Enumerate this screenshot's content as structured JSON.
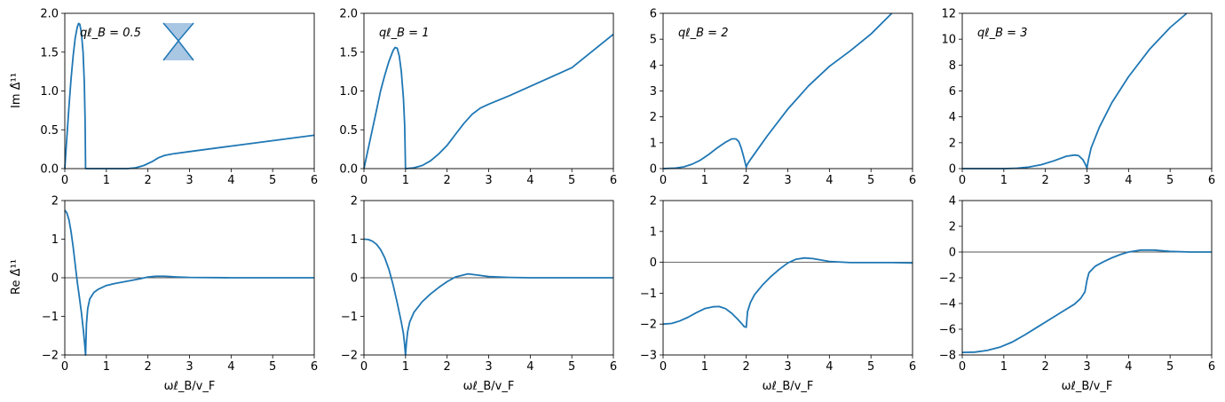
{
  "figure": {
    "row_labels": [
      "Im Δ̂¹¹",
      "Re Δ̂¹¹"
    ],
    "xlabel": "ωℓ_B/v_F"
  },
  "chart_data": [
    {
      "type": "line",
      "panel_label": "qℓ_B = 0.5",
      "xlim": [
        0,
        6
      ],
      "ylim": [
        0,
        2
      ],
      "xticks": [
        0,
        1,
        2,
        3,
        4,
        5,
        6
      ],
      "yticks": [
        0.0,
        0.5,
        1.0,
        1.5,
        2.0
      ],
      "ytick_labels": [
        "0.0",
        "0.5",
        "1.0",
        "1.5",
        "2.0"
      ],
      "zero_line": false,
      "inset": "cone-icon",
      "series": [
        {
          "color": "#1f77b4",
          "x": [
            0,
            0.05,
            0.1,
            0.15,
            0.2,
            0.25,
            0.3,
            0.33,
            0.36,
            0.4,
            0.44,
            0.47,
            0.49,
            0.5,
            0.5,
            0.8,
            1.0,
            1.5,
            1.7,
            1.9,
            2.1,
            2.25,
            2.4,
            2.6,
            3,
            4,
            5,
            6
          ],
          "y": [
            0,
            0.4,
            0.8,
            1.15,
            1.45,
            1.68,
            1.82,
            1.87,
            1.86,
            1.75,
            1.5,
            1.1,
            0.6,
            0.0,
            0,
            0,
            0,
            0,
            0.01,
            0.04,
            0.09,
            0.14,
            0.17,
            0.19,
            0.22,
            0.29,
            0.36,
            0.43
          ]
        }
      ]
    },
    {
      "type": "line",
      "panel_label": "qℓ_B = 1",
      "xlim": [
        0,
        6
      ],
      "ylim": [
        0,
        2
      ],
      "xticks": [
        0,
        1,
        2,
        3,
        4,
        5,
        6
      ],
      "yticks": [
        0.0,
        0.5,
        1.0,
        1.5,
        2.0
      ],
      "ytick_labels": [
        "0.0",
        "0.5",
        "1.0",
        "1.5",
        "2.0"
      ],
      "zero_line": false,
      "series": [
        {
          "color": "#1f77b4",
          "x": [
            0,
            0.1,
            0.2,
            0.3,
            0.4,
            0.5,
            0.6,
            0.7,
            0.75,
            0.8,
            0.85,
            0.9,
            0.95,
            0.98,
            1.0,
            1.0,
            1.2,
            1.4,
            1.6,
            1.8,
            2.0,
            2.2,
            2.4,
            2.6,
            2.8,
            3.0,
            3.5,
            4,
            5,
            6
          ],
          "y": [
            0,
            0.25,
            0.5,
            0.75,
            1.0,
            1.2,
            1.38,
            1.52,
            1.56,
            1.55,
            1.45,
            1.25,
            0.9,
            0.55,
            0.0,
            0,
            0.01,
            0.04,
            0.1,
            0.19,
            0.3,
            0.44,
            0.58,
            0.7,
            0.78,
            0.83,
            0.94,
            1.06,
            1.3,
            1.73
          ]
        }
      ]
    },
    {
      "type": "line",
      "panel_label": "qℓ_B = 2",
      "xlim": [
        0,
        6
      ],
      "ylim": [
        0,
        6
      ],
      "xticks": [
        0,
        1,
        2,
        3,
        4,
        5,
        6
      ],
      "yticks": [
        0,
        1,
        2,
        3,
        4,
        5,
        6
      ],
      "ytick_labels": [
        "0",
        "1",
        "2",
        "3",
        "4",
        "5",
        "6"
      ],
      "zero_line": false,
      "series": [
        {
          "color": "#1f77b4",
          "x": [
            0,
            0.3,
            0.5,
            0.7,
            0.9,
            1.1,
            1.3,
            1.5,
            1.65,
            1.75,
            1.82,
            1.88,
            1.93,
            1.97,
            2.0,
            2.02,
            2.1,
            2.3,
            2.5,
            3.0,
            3.5,
            4.0,
            4.5,
            5.0,
            5.5
          ],
          "y": [
            0,
            0.02,
            0.07,
            0.17,
            0.33,
            0.55,
            0.8,
            1.02,
            1.15,
            1.15,
            1.05,
            0.8,
            0.5,
            0.25,
            0.05,
            0.15,
            0.35,
            0.8,
            1.25,
            2.3,
            3.2,
            3.95,
            4.55,
            5.2,
            6.0
          ]
        }
      ]
    },
    {
      "type": "line",
      "panel_label": "qℓ_B = 3",
      "xlim": [
        0,
        6
      ],
      "ylim": [
        0,
        12
      ],
      "xticks": [
        0,
        1,
        2,
        3,
        4,
        5,
        6
      ],
      "yticks": [
        0,
        2,
        4,
        6,
        8,
        10,
        12
      ],
      "ytick_labels": [
        "0",
        "2",
        "4",
        "6",
        "8",
        "10",
        "12"
      ],
      "zero_line": false,
      "series": [
        {
          "color": "#1f77b4",
          "x": [
            0,
            1,
            1.3,
            1.6,
            1.9,
            2.2,
            2.5,
            2.7,
            2.8,
            2.9,
            2.95,
            3.0,
            3.03,
            3.1,
            3.3,
            3.6,
            4.0,
            4.5,
            5.0,
            5.4
          ],
          "y": [
            0,
            0,
            0.03,
            0.12,
            0.3,
            0.6,
            0.95,
            1.05,
            1.0,
            0.7,
            0.4,
            0.05,
            0.6,
            1.6,
            3.2,
            5.1,
            7.1,
            9.2,
            10.9,
            12.0
          ]
        }
      ]
    },
    {
      "type": "line",
      "xlim": [
        0,
        6
      ],
      "ylim": [
        -2,
        2
      ],
      "xticks": [
        0,
        1,
        2,
        3,
        4,
        5,
        6
      ],
      "yticks": [
        -2,
        -1,
        0,
        1,
        2
      ],
      "ytick_labels": [
        "−2",
        "−1",
        "0",
        "1",
        "2"
      ],
      "xlabel": "ωℓ_B/v_F",
      "zero_line": true,
      "series": [
        {
          "color": "#1f77b4",
          "x": [
            0,
            0.05,
            0.1,
            0.15,
            0.2,
            0.25,
            0.3,
            0.35,
            0.4,
            0.45,
            0.48,
            0.5,
            0.52,
            0.55,
            0.6,
            0.7,
            0.8,
            1.0,
            1.2,
            1.5,
            1.8,
            2.0,
            2.2,
            2.4,
            2.7,
            3.0,
            4,
            5,
            6
          ],
          "y": [
            1.75,
            1.68,
            1.5,
            1.2,
            0.8,
            0.35,
            -0.1,
            -0.5,
            -0.9,
            -1.4,
            -1.75,
            -2.0,
            -1.2,
            -0.8,
            -0.55,
            -0.38,
            -0.3,
            -0.2,
            -0.15,
            -0.09,
            -0.03,
            0.02,
            0.04,
            0.04,
            0.02,
            0.01,
            0,
            0,
            0
          ]
        }
      ]
    },
    {
      "type": "line",
      "xlim": [
        0,
        6
      ],
      "ylim": [
        -2,
        2
      ],
      "xticks": [
        0,
        1,
        2,
        3,
        4,
        5,
        6
      ],
      "yticks": [
        -2,
        -1,
        0,
        1,
        2
      ],
      "ytick_labels": [
        "−2",
        "−1",
        "0",
        "1",
        "2"
      ],
      "xlabel": "ωℓ_B/v_F",
      "zero_line": true,
      "series": [
        {
          "color": "#1f77b4",
          "x": [
            0,
            0.1,
            0.2,
            0.3,
            0.4,
            0.5,
            0.6,
            0.7,
            0.8,
            0.9,
            0.95,
            0.98,
            1.0,
            1.02,
            1.05,
            1.1,
            1.2,
            1.4,
            1.6,
            1.8,
            2.0,
            2.2,
            2.5,
            2.8,
            3.0,
            3.5,
            4,
            5,
            6
          ],
          "y": [
            1.0,
            0.99,
            0.95,
            0.87,
            0.73,
            0.52,
            0.22,
            -0.18,
            -0.65,
            -1.15,
            -1.45,
            -1.75,
            -2.0,
            -1.7,
            -1.4,
            -1.15,
            -0.9,
            -0.62,
            -0.42,
            -0.25,
            -0.1,
            0.02,
            0.1,
            0.06,
            0.03,
            0.01,
            0,
            0,
            0
          ]
        }
      ]
    },
    {
      "type": "line",
      "xlim": [
        0,
        6
      ],
      "ylim": [
        -3,
        2
      ],
      "xticks": [
        0,
        1,
        2,
        3,
        4,
        5,
        6
      ],
      "yticks": [
        -3,
        -2,
        -1,
        0,
        1,
        2
      ],
      "ytick_labels": [
        "−3",
        "−2",
        "−1",
        "0",
        "1",
        "2"
      ],
      "xlabel": "ωℓ_B/v_F",
      "zero_line": true,
      "series": [
        {
          "color": "#1f77b4",
          "x": [
            0,
            0.2,
            0.4,
            0.6,
            0.8,
            1.0,
            1.2,
            1.35,
            1.5,
            1.65,
            1.8,
            1.9,
            1.95,
            2.0,
            2.03,
            2.1,
            2.2,
            2.4,
            2.6,
            2.8,
            3.0,
            3.2,
            3.4,
            3.6,
            4.0,
            4.5,
            5,
            5.5,
            6
          ],
          "y": [
            -2.0,
            -1.98,
            -1.9,
            -1.78,
            -1.63,
            -1.5,
            -1.44,
            -1.43,
            -1.5,
            -1.65,
            -1.85,
            -2.0,
            -2.08,
            -2.1,
            -1.6,
            -1.3,
            -1.05,
            -0.72,
            -0.45,
            -0.22,
            -0.02,
            0.1,
            0.14,
            0.12,
            0.03,
            -0.01,
            -0.01,
            -0.01,
            -0.02
          ]
        }
      ]
    },
    {
      "type": "line",
      "xlim": [
        0,
        6
      ],
      "ylim": [
        -8,
        4
      ],
      "xticks": [
        0,
        1,
        2,
        3,
        4,
        5,
        6
      ],
      "yticks": [
        -8,
        -6,
        -4,
        -2,
        0,
        2,
        4
      ],
      "ytick_labels": [
        "−8",
        "−6",
        "−4",
        "−2",
        "0",
        "2",
        "4"
      ],
      "xlabel": "ωℓ_B/v_F",
      "zero_line": true,
      "series": [
        {
          "color": "#1f77b4",
          "x": [
            0,
            0.3,
            0.6,
            0.9,
            1.2,
            1.5,
            1.8,
            2.1,
            2.4,
            2.7,
            2.85,
            2.95,
            3.0,
            3.05,
            3.2,
            3.4,
            3.6,
            3.8,
            4.0,
            4.3,
            4.6,
            5.0,
            5.5,
            6
          ],
          "y": [
            -7.8,
            -7.78,
            -7.65,
            -7.4,
            -7.0,
            -6.45,
            -5.85,
            -5.25,
            -4.65,
            -4.05,
            -3.6,
            -3.1,
            -2.2,
            -1.6,
            -1.1,
            -0.75,
            -0.45,
            -0.2,
            0.0,
            0.15,
            0.15,
            0.05,
            0.0,
            0.0
          ]
        }
      ]
    }
  ]
}
